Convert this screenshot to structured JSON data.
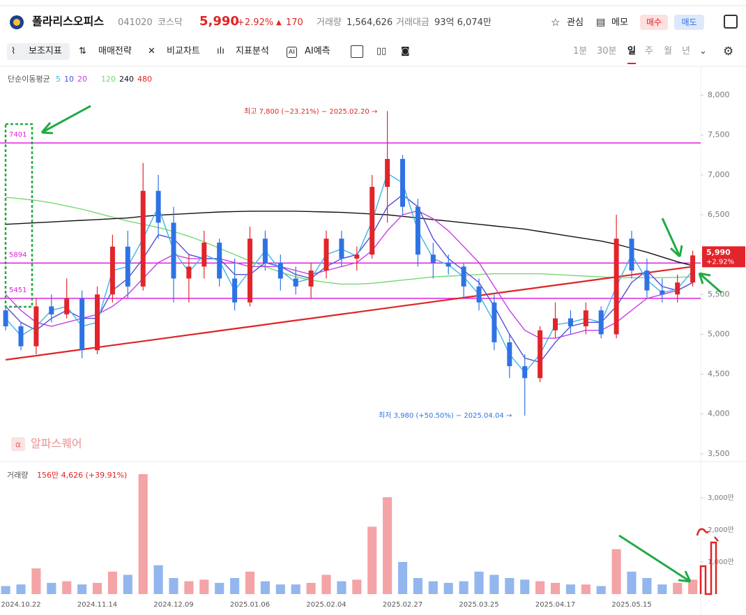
{
  "header": {
    "name": "폴라리스오피스",
    "code": "041020",
    "market": "코스닥",
    "price": "5,990",
    "change_pct": "+2.92%",
    "change": "170",
    "volume_label": "거래량",
    "volume": "1,564,626",
    "amount_label": "거래대금",
    "amount": "93억 6,074만",
    "watch": "관심",
    "memo": "메모",
    "buy": "매수",
    "sell": "매도"
  },
  "toolbar": {
    "items": [
      "보조지표",
      "매매전략",
      "비교차트",
      "지표분석",
      "AI예측"
    ],
    "periods": [
      "1분",
      "30분",
      "일",
      "주",
      "월",
      "년"
    ]
  },
  "chart_data": {
    "type": "candlestick",
    "ma_title": "단순이동평균",
    "watermark": "알파스퀘어",
    "high_label": "최고 7,800 (−23.21%) − 2025.02.20 →",
    "low_label": "최저 3,980 (+50.50%) − 2025.04.04 →",
    "up_color": "#e2242b",
    "down_color": "#2f72e4",
    "categories": [
      null,
      "2024.10.22",
      null,
      null,
      null,
      null,
      "2024.11.14",
      null,
      null,
      null,
      null,
      "2024.12.09",
      null,
      null,
      null,
      null,
      "2025.01.06",
      null,
      null,
      null,
      null,
      "2025.02.04",
      null,
      null,
      null,
      null,
      "2025.02.27",
      null,
      null,
      null,
      null,
      "2025.03.25",
      null,
      null,
      null,
      null,
      "2025.04.17",
      null,
      null,
      null,
      null,
      "2025.05.15",
      null,
      null,
      null,
      null
    ],
    "ohlc": [
      [
        5300,
        5350,
        5050,
        5100
      ],
      [
        5100,
        5150,
        4800,
        4850
      ],
      [
        4850,
        5450,
        4750,
        5350
      ],
      [
        5350,
        5500,
        5150,
        5250
      ],
      [
        5250,
        5700,
        5200,
        5450
      ],
      [
        5450,
        5550,
        4700,
        4800
      ],
      [
        4800,
        5600,
        4750,
        5500
      ],
      [
        5500,
        6250,
        5400,
        6100
      ],
      [
        6100,
        6300,
        5450,
        5600
      ],
      [
        5600,
        7150,
        5550,
        6800
      ],
      [
        6800,
        7000,
        6200,
        6400
      ],
      [
        6400,
        6600,
        5400,
        5700
      ],
      [
        5700,
        6000,
        5400,
        5850
      ],
      [
        5850,
        6300,
        5700,
        6150
      ],
      [
        6150,
        6200,
        5600,
        5700
      ],
      [
        5700,
        5950,
        5300,
        5400
      ],
      [
        5400,
        6350,
        5350,
        6200
      ],
      [
        6200,
        6300,
        5800,
        5900
      ],
      [
        5900,
        6000,
        5550,
        5700
      ],
      [
        5700,
        5850,
        5500,
        5600
      ],
      [
        5600,
        5900,
        5450,
        5800
      ],
      [
        5800,
        6300,
        5700,
        6200
      ],
      [
        6200,
        6300,
        5850,
        5950
      ],
      [
        5950,
        6100,
        5800,
        6000
      ],
      [
        6000,
        7000,
        5950,
        6850
      ],
      [
        6850,
        7800,
        6400,
        7200
      ],
      [
        7200,
        7250,
        6500,
        6600
      ],
      [
        6600,
        6700,
        5850,
        6000
      ],
      [
        6000,
        6150,
        5700,
        5900
      ],
      [
        5900,
        6000,
        5750,
        5850
      ],
      [
        5850,
        5900,
        5450,
        5600
      ],
      [
        5600,
        5700,
        5300,
        5400
      ],
      [
        5400,
        5500,
        4800,
        4900
      ],
      [
        4900,
        5000,
        4450,
        4600
      ],
      [
        4600,
        4750,
        3980,
        4450
      ],
      [
        4450,
        5100,
        4400,
        5050
      ],
      [
        5050,
        5400,
        4950,
        5200
      ],
      [
        5200,
        5300,
        5000,
        5100
      ],
      [
        5100,
        5400,
        5000,
        5300
      ],
      [
        5300,
        5350,
        4950,
        5000
      ],
      [
        5000,
        6500,
        4950,
        6200
      ],
      [
        6200,
        6300,
        5700,
        5800
      ],
      [
        5800,
        5950,
        5450,
        5550
      ],
      [
        5550,
        5700,
        5400,
        5500
      ],
      [
        5500,
        5750,
        5400,
        5650
      ],
      [
        5650,
        6050,
        5600,
        5990
      ]
    ],
    "series": [
      {
        "name": "5",
        "color": "#3cb4e8",
        "values": [
          5200,
          4980,
          5100,
          5300,
          5350,
          5100,
          5150,
          5800,
          5850,
          6200,
          6600,
          6050,
          5780,
          6000,
          5920,
          5550,
          5800,
          6050,
          5800,
          5650,
          5700,
          6000,
          6070,
          5980,
          6420,
          7020,
          6900,
          6300,
          5950,
          5870,
          5720,
          5500,
          5150,
          4750,
          4520,
          4750,
          5120,
          5150,
          5200,
          5150,
          5600,
          6000,
          5680,
          5520,
          5570,
          5800
        ]
      },
      {
        "name": "10",
        "color": "#5050d8",
        "values": [
          5350,
          5150,
          5050,
          5200,
          5300,
          5200,
          5200,
          5550,
          5700,
          5950,
          6250,
          6200,
          6000,
          5950,
          5950,
          5750,
          5750,
          5900,
          5850,
          5750,
          5700,
          5850,
          5950,
          6000,
          6250,
          6600,
          6750,
          6600,
          6200,
          5950,
          5800,
          5650,
          5350,
          5000,
          4700,
          4650,
          4900,
          5100,
          5150,
          5150,
          5350,
          5650,
          5800,
          5600,
          5550,
          5650
        ]
      },
      {
        "name": "20",
        "color": "#c63ee6",
        "values": [
          5500,
          5300,
          5150,
          5100,
          5150,
          5200,
          5250,
          5350,
          5500,
          5700,
          5900,
          6000,
          5950,
          5950,
          5950,
          5900,
          5850,
          5850,
          5850,
          5800,
          5750,
          5800,
          5850,
          5900,
          6050,
          6300,
          6500,
          6550,
          6450,
          6300,
          6100,
          5900,
          5600,
          5300,
          5050,
          4950,
          4950,
          5000,
          5050,
          5050,
          5150,
          5300,
          5450,
          5500,
          5550,
          5650
        ]
      },
      {
        "name": "120",
        "color": "#74d874",
        "values": [
          6720,
          6700,
          6680,
          6650,
          6610,
          6570,
          6520,
          6470,
          6420,
          6380,
          6340,
          6290,
          6230,
          6160,
          6080,
          6000,
          5920,
          5850,
          5780,
          5720,
          5680,
          5650,
          5630,
          5630,
          5640,
          5660,
          5680,
          5700,
          5720,
          5730,
          5740,
          5750,
          5760,
          5760,
          5760,
          5760,
          5750,
          5740,
          5730,
          5720,
          5710,
          5710,
          5710,
          5710,
          5715,
          5720
        ]
      },
      {
        "name": "240",
        "color": "#111111",
        "values": [
          6380,
          6390,
          6400,
          6410,
          6420,
          6430,
          6440,
          6450,
          6460,
          6480,
          6495,
          6505,
          6515,
          6525,
          6535,
          6540,
          6545,
          6545,
          6545,
          6545,
          6540,
          6535,
          6530,
          6520,
          6510,
          6500,
          6480,
          6460,
          6440,
          6420,
          6400,
          6380,
          6360,
          6340,
          6320,
          6290,
          6260,
          6230,
          6200,
          6170,
          6130,
          6080,
          6030,
          5970,
          5910,
          5860
        ]
      },
      {
        "name": "480",
        "color": "#e02424",
        "values": [
          4680,
          4706,
          4732,
          4758,
          4784,
          4810,
          4836,
          4862,
          4888,
          4914,
          4940,
          4966,
          4992,
          5018,
          5044,
          5070,
          5096,
          5122,
          5148,
          5174,
          5200,
          5226,
          5252,
          5278,
          5304,
          5330,
          5356,
          5382,
          5408,
          5434,
          5460,
          5486,
          5512,
          5538,
          5564,
          5590,
          5616,
          5642,
          5668,
          5694,
          5720,
          5746,
          5772,
          5798,
          5824,
          5850
        ]
      }
    ],
    "hlines": [
      7401,
      5894,
      5451
    ],
    "hline_color": "#e020e0",
    "ylim": [
      3420,
      8320
    ],
    "yticks": [
      {
        "value": 8000,
        "label": "8,000"
      },
      {
        "value": 7500,
        "label": "7,500"
      },
      {
        "value": 7000,
        "label": "7,000"
      },
      {
        "value": 6500,
        "label": "6,500"
      },
      {
        "value": 6000,
        "label": "6,000"
      },
      {
        "value": 5500,
        "label": "5,500"
      },
      {
        "value": 5000,
        "label": "5,000"
      },
      {
        "value": 4500,
        "label": "4,500"
      },
      {
        "value": 4000,
        "label": "4,000"
      },
      {
        "value": 3500,
        "label": "3,500"
      }
    ],
    "grid": false,
    "volume": {
      "label": "거래량",
      "info": "156만 4,626 (+39.91%)",
      "up_color": "#f4a3a6",
      "down_color": "#93b6ee",
      "values": [
        250,
        300,
        800,
        350,
        400,
        300,
        350,
        700,
        600,
        3740,
        900,
        500,
        400,
        450,
        350,
        500,
        700,
        400,
        300,
        300,
        350,
        600,
        400,
        450,
        2100,
        3020,
        1000,
        500,
        400,
        350,
        400,
        700,
        600,
        500,
        450,
        400,
        350,
        300,
        300,
        250,
        1400,
        700,
        500,
        300,
        350,
        450
      ],
      "ylim": [
        0,
        4000
      ],
      "yticks": [
        {
          "value": 3000,
          "label": "3,000만"
        },
        {
          "value": 2000,
          "label": "2,000만"
        },
        {
          "value": 1000,
          "label": "1,000만"
        }
      ]
    }
  }
}
